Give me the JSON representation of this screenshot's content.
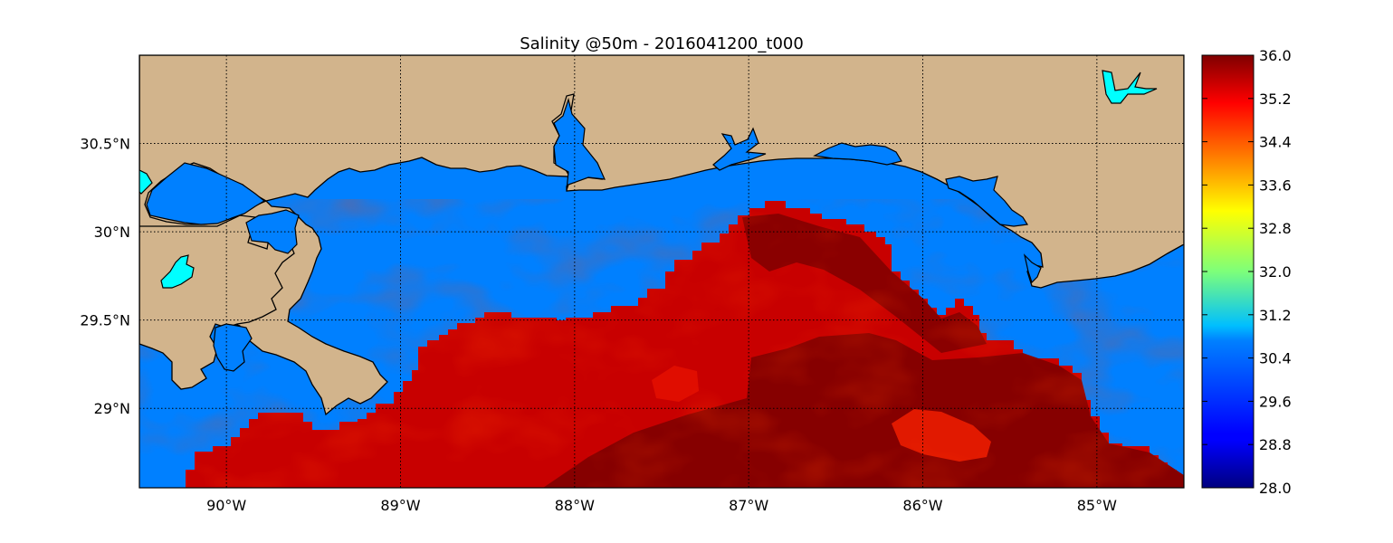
{
  "title": "Salinity @50m - 2016041200_t000",
  "map": {
    "lon_range": [
      -90.5,
      -84.5
    ],
    "lat_range": [
      28.55,
      31.0
    ],
    "lon_ticks": [
      {
        "value": -90,
        "label": "90°W"
      },
      {
        "value": -89,
        "label": "89°W"
      },
      {
        "value": -88,
        "label": "88°W"
      },
      {
        "value": -87,
        "label": "87°W"
      },
      {
        "value": -86,
        "label": "86°W"
      },
      {
        "value": -85,
        "label": "85°W"
      }
    ],
    "lat_ticks": [
      {
        "value": 30.5,
        "label": "30.5°N"
      },
      {
        "value": 30.0,
        "label": "30°N"
      },
      {
        "value": 29.5,
        "label": "29.5°N"
      },
      {
        "value": 29.0,
        "label": "29°N"
      }
    ],
    "grid": true,
    "colors": {
      "land": "#d2b48c",
      "ocean_masked": "#0080ff",
      "lake": "#00ffff",
      "coastline": "#000000"
    }
  },
  "colorbar": {
    "vmin": 28.0,
    "vmax": 36.0,
    "colormap": "jet",
    "position": "right",
    "tick_labels": [
      "36.0",
      "35.2",
      "34.4",
      "33.6",
      "32.8",
      "32.0",
      "31.2",
      "30.4",
      "29.6",
      "28.8",
      "28.0"
    ]
  }
}
